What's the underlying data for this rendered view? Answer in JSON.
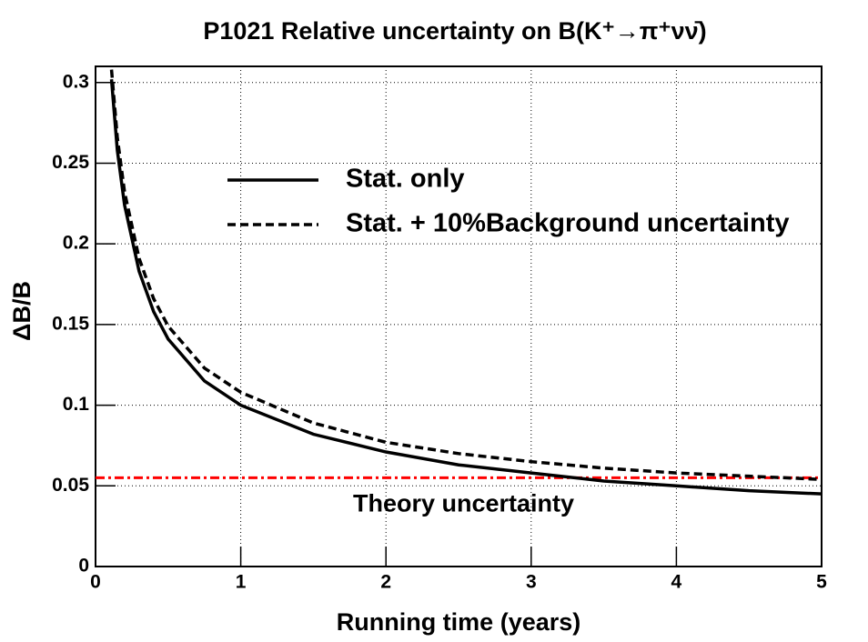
{
  "chart_data": {
    "type": "line",
    "title": "P1021 Relative uncertainty on B(K⁺→π⁺νν̄)",
    "x_label": "Running time (years)",
    "y_label": "ΔB/B",
    "x": [
      0.11,
      0.15,
      0.2,
      0.3,
      0.4,
      0.5,
      0.75,
      1,
      1.5,
      2,
      2.5,
      3,
      3.5,
      4,
      4.5,
      5
    ],
    "series": [
      {
        "name": "Stat. only",
        "color": "#000000",
        "dash": "solid",
        "values": [
          0.302,
          0.258,
          0.224,
          0.183,
          0.158,
          0.141,
          0.115,
          0.1,
          0.082,
          0.071,
          0.063,
          0.058,
          0.053,
          0.05,
          0.047,
          0.045
        ]
      },
      {
        "name": "Stat. + 10%Background uncertainty",
        "color": "#000000",
        "dash": "dashed",
        "values": [
          0.308,
          0.266,
          0.232,
          0.191,
          0.166,
          0.149,
          0.123,
          0.108,
          0.089,
          0.077,
          0.07,
          0.065,
          0.061,
          0.058,
          0.056,
          0.054
        ]
      }
    ],
    "hlines": [
      {
        "name": "Theory uncertainty",
        "value": 0.055,
        "color": "#ff0000"
      }
    ],
    "xlim": [
      0,
      5
    ],
    "xticks": [
      0,
      1,
      2,
      3,
      4,
      5
    ],
    "ylim": [
      0,
      0.31
    ],
    "yticks": [
      0,
      0.05,
      0.1,
      0.15,
      0.2,
      0.25,
      0.3
    ],
    "grid": true
  }
}
